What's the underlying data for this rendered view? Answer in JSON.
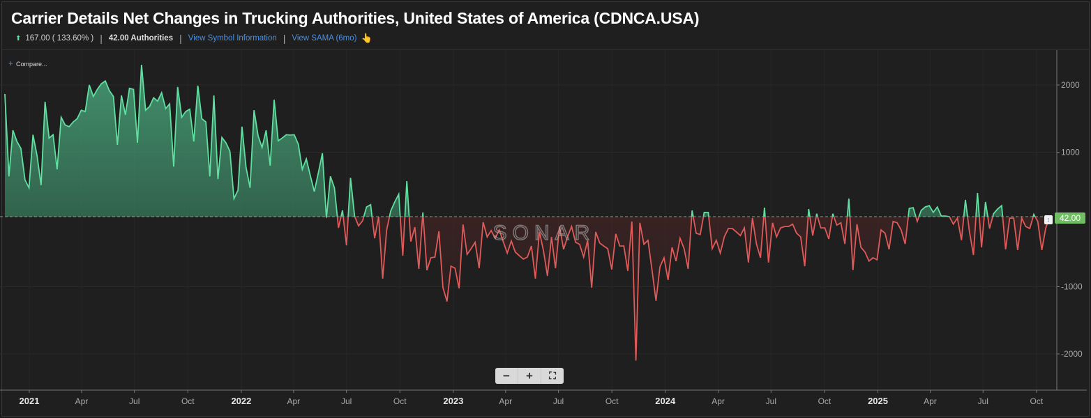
{
  "header": {
    "title": "Carrier Details Net Changes in Trucking Authorities, United States of America (CDNCA.USA)",
    "change": "167.00 ( 133.60% )",
    "change_direction_icon": "arrow-up-icon",
    "value_label": "42.00 Authorities",
    "link_symbol_info": "View Symbol Information",
    "link_sama": "View SAMA (6mo)",
    "sama_icon": "pointing-hand-icon"
  },
  "compare_label": "Compare...",
  "watermark": "SONAR",
  "zoom_controls": {
    "minus": "−",
    "plus": "+",
    "fullscreen": "⛶"
  },
  "colors": {
    "positive": "#5fe0a0",
    "negative": "#e05a5a",
    "last_value_tag": "#6fbf62",
    "link": "#4a90e2"
  },
  "chart_data": {
    "type": "area",
    "title": "Carrier Details Net Changes in Trucking Authorities, United States of America (CDNCA.USA)",
    "frequency": "weekly",
    "date_range": [
      "2020-11-20",
      "2025-10-24"
    ],
    "xlim": [
      "2020-11-20",
      "2025-11-05"
    ],
    "ylim": [
      -2500,
      2450
    ],
    "y_ticks": [
      2000,
      1000,
      -1000,
      -2000
    ],
    "y_tick_labels": [
      "2000",
      "1000",
      "-1000",
      "-2000"
    ],
    "x_ticks": [
      {
        "date": "2021-01-01",
        "label": "2021",
        "major": true
      },
      {
        "date": "2021-04-01",
        "label": "Apr"
      },
      {
        "date": "2021-07-01",
        "label": "Jul"
      },
      {
        "date": "2021-10-01",
        "label": "Oct"
      },
      {
        "date": "2022-01-01",
        "label": "2022",
        "major": true
      },
      {
        "date": "2022-04-01",
        "label": "Apr"
      },
      {
        "date": "2022-07-01",
        "label": "Jul"
      },
      {
        "date": "2022-10-01",
        "label": "Oct"
      },
      {
        "date": "2023-01-01",
        "label": "2023",
        "major": true
      },
      {
        "date": "2023-04-01",
        "label": "Apr"
      },
      {
        "date": "2023-07-01",
        "label": "Jul"
      },
      {
        "date": "2023-10-01",
        "label": "Oct"
      },
      {
        "date": "2024-01-01",
        "label": "2024",
        "major": true
      },
      {
        "date": "2024-04-01",
        "label": "Apr"
      },
      {
        "date": "2024-07-01",
        "label": "Jul"
      },
      {
        "date": "2024-10-01",
        "label": "Oct"
      },
      {
        "date": "2025-01-01",
        "label": "2025",
        "major": true
      },
      {
        "date": "2025-04-01",
        "label": "Apr"
      },
      {
        "date": "2025-07-01",
        "label": "Jul"
      },
      {
        "date": "2025-10-01",
        "label": "Oct"
      }
    ],
    "reference_line": 42,
    "last_value_label": "42.00",
    "grid": true,
    "values": [
      1865,
      640,
      1325,
      1160,
      1055,
      590,
      470,
      1260,
      950,
      510,
      1750,
      1210,
      1260,
      745,
      1520,
      1405,
      1380,
      1450,
      1500,
      1625,
      1605,
      2000,
      1830,
      1935,
      2020,
      2060,
      1915,
      1830,
      1110,
      1845,
      1555,
      1950,
      1935,
      1140,
      2300,
      1625,
      1680,
      1810,
      1760,
      1885,
      1650,
      1720,
      785,
      1970,
      1520,
      1605,
      1640,
      1160,
      1990,
      1500,
      1450,
      640,
      1845,
      600,
      1220,
      1140,
      1015,
      310,
      435,
      1380,
      775,
      470,
      1625,
      1245,
      1070,
      1325,
      800,
      1780,
      1170,
      1210,
      1260,
      1255,
      1260,
      1120,
      745,
      900,
      650,
      415,
      695,
      985,
      20,
      640,
      470,
      -125,
      135,
      -385,
      620,
      50,
      -95,
      -20,
      185,
      220,
      -280,
      40,
      -880,
      -155,
      125,
      260,
      375,
      -540,
      570,
      -330,
      -115,
      -735,
      105,
      -755,
      -570,
      -560,
      -175,
      -1015,
      -1220,
      -695,
      -725,
      -1025,
      -75,
      -520,
      -435,
      -340,
      -725,
      -40,
      -260,
      -165,
      -280,
      -155,
      -330,
      -500,
      -320,
      -485,
      -540,
      -590,
      -560,
      -395,
      -880,
      -185,
      -465,
      -840,
      -260,
      -725,
      -105,
      -445,
      -260,
      -105,
      -340,
      -370,
      -560,
      -310,
      -1015,
      -185,
      -350,
      -395,
      -435,
      -745,
      -215,
      -395,
      -395,
      -765,
      -30,
      -2100,
      -50,
      -370,
      -310,
      -745,
      -1210,
      -705,
      -570,
      -900,
      -415,
      -620,
      -280,
      -435,
      -735,
      135,
      -205,
      -225,
      105,
      105,
      -435,
      -310,
      -500,
      -260,
      -135,
      -135,
      -185,
      -240,
      -125,
      -640,
      20,
      -365,
      -570,
      175,
      -640,
      -50,
      -260,
      -125,
      -105,
      -105,
      -70,
      -205,
      -260,
      -695,
      155,
      -240,
      85,
      -125,
      -125,
      -290,
      85,
      -85,
      -50,
      -365,
      310,
      -755,
      -70,
      -415,
      -485,
      -620,
      -570,
      -600,
      -155,
      -205,
      -445,
      -30,
      -50,
      -155,
      -365,
      165,
      175,
      -30,
      135,
      185,
      205,
      105,
      185,
      50,
      50,
      40,
      -70,
      20,
      -310,
      290,
      -185,
      -530,
      395,
      -415,
      260,
      -135,
      85,
      155,
      205,
      -445,
      20,
      20,
      -455,
      20,
      -105,
      -135,
      75,
      -30,
      -455,
      -125,
      42
    ]
  }
}
